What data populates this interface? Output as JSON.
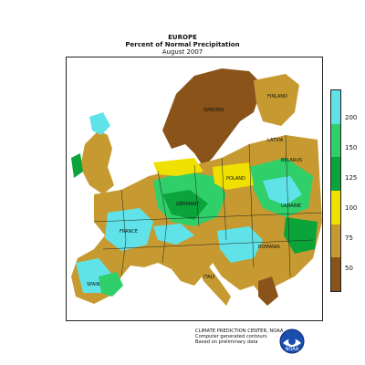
{
  "title": {
    "line1": "EUROPE",
    "line2": "Percent of Normal Precipitation",
    "line3": "August 2007"
  },
  "legend": {
    "labels": [
      "200",
      "150",
      "125",
      "100",
      "75",
      "50"
    ],
    "colors": [
      "#5fe3e8",
      "#2fcf6a",
      "#0aa43a",
      "#f0e000",
      "#c69a30",
      "#8a531a"
    ]
  },
  "credit": {
    "line1": "CLIMATE PREDICTION CENTER, NOAA",
    "line2": "Computer generated contours",
    "line3": "Based on preliminary data"
  },
  "logo_text": "NOAA",
  "countries": [
    "FRANCE",
    "SPAIN",
    "GERMANY",
    "POLAND",
    "UKRAINE",
    "BELARUS",
    "ROMANIA",
    "LATVIA",
    "ITALY",
    "SWEDEN",
    "FINLAND"
  ],
  "colors": {
    "extreme_wet": "#5fe3e8",
    "very_wet": "#2fcf6a",
    "wet": "#0aa43a",
    "near_normal": "#f0e000",
    "dry": "#c69a30",
    "very_dry": "#8a531a",
    "sea": "#ffffff"
  }
}
